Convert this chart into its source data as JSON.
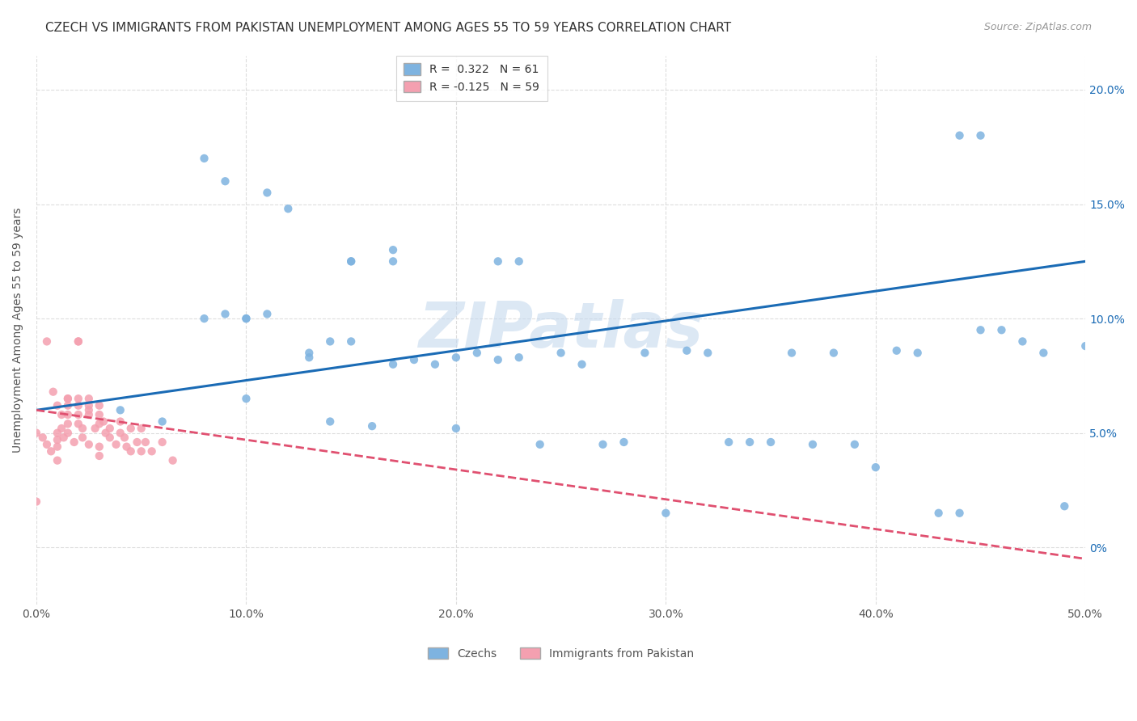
{
  "title": "CZECH VS IMMIGRANTS FROM PAKISTAN UNEMPLOYMENT AMONG AGES 55 TO 59 YEARS CORRELATION CHART",
  "source": "Source: ZipAtlas.com",
  "ylabel": "Unemployment Among Ages 55 to 59 years",
  "xlim": [
    0.0,
    0.5
  ],
  "ylim": [
    -0.025,
    0.215
  ],
  "xticks": [
    0.0,
    0.1,
    0.2,
    0.3,
    0.4,
    0.5
  ],
  "yticks": [
    0.0,
    0.05,
    0.1,
    0.15,
    0.2
  ],
  "ytick_labels_right": [
    "0%",
    "5.0%",
    "10.0%",
    "15.0%",
    "20.0%"
  ],
  "xtick_labels": [
    "0.0%",
    "10.0%",
    "20.0%",
    "30.0%",
    "40.0%",
    "50.0%"
  ],
  "czech_color": "#7eb3e0",
  "pakistan_color": "#f4a0b0",
  "czech_line_color": "#1a6bb5",
  "pakistan_line_color": "#e05070",
  "czech_R": 0.322,
  "czech_N": 61,
  "pakistan_R": -0.125,
  "pakistan_N": 59,
  "watermark": "ZIPatlas",
  "legend_labels": [
    "Czechs",
    "Immigrants from Pakistan"
  ],
  "background_color": "#ffffff",
  "grid_color": "#dddddd",
  "czech_scatter_x": [
    0.04,
    0.06,
    0.08,
    0.09,
    0.1,
    0.1,
    0.11,
    0.12,
    0.13,
    0.14,
    0.14,
    0.15,
    0.15,
    0.16,
    0.17,
    0.17,
    0.18,
    0.19,
    0.2,
    0.2,
    0.21,
    0.22,
    0.23,
    0.24,
    0.25,
    0.26,
    0.27,
    0.28,
    0.29,
    0.3,
    0.31,
    0.32,
    0.33,
    0.34,
    0.35,
    0.36,
    0.37,
    0.38,
    0.39,
    0.4,
    0.41,
    0.42,
    0.43,
    0.44,
    0.45,
    0.46,
    0.47,
    0.48,
    0.49,
    0.5,
    0.08,
    0.09,
    0.1,
    0.11,
    0.13,
    0.15,
    0.17,
    0.22,
    0.23,
    0.44,
    0.45
  ],
  "czech_scatter_y": [
    0.06,
    0.055,
    0.1,
    0.102,
    0.065,
    0.1,
    0.155,
    0.148,
    0.083,
    0.09,
    0.055,
    0.09,
    0.125,
    0.053,
    0.08,
    0.125,
    0.082,
    0.08,
    0.052,
    0.083,
    0.085,
    0.082,
    0.125,
    0.045,
    0.085,
    0.08,
    0.045,
    0.046,
    0.085,
    0.015,
    0.086,
    0.085,
    0.046,
    0.046,
    0.046,
    0.085,
    0.045,
    0.085,
    0.045,
    0.035,
    0.086,
    0.085,
    0.015,
    0.015,
    0.095,
    0.095,
    0.09,
    0.085,
    0.018,
    0.088,
    0.17,
    0.16,
    0.1,
    0.102,
    0.085,
    0.125,
    0.13,
    0.125,
    0.083,
    0.18,
    0.18
  ],
  "pakistan_scatter_x": [
    0.0,
    0.003,
    0.005,
    0.007,
    0.01,
    0.01,
    0.01,
    0.01,
    0.012,
    0.013,
    0.015,
    0.015,
    0.015,
    0.015,
    0.015,
    0.018,
    0.02,
    0.02,
    0.02,
    0.02,
    0.02,
    0.022,
    0.022,
    0.025,
    0.025,
    0.025,
    0.025,
    0.028,
    0.03,
    0.03,
    0.03,
    0.03,
    0.032,
    0.033,
    0.035,
    0.035,
    0.038,
    0.04,
    0.04,
    0.042,
    0.043,
    0.045,
    0.045,
    0.048,
    0.05,
    0.05,
    0.052,
    0.055,
    0.06,
    0.065,
    0.0,
    0.005,
    0.008,
    0.01,
    0.012,
    0.015,
    0.02,
    0.025,
    0.03
  ],
  "pakistan_scatter_y": [
    0.05,
    0.048,
    0.045,
    0.042,
    0.05,
    0.047,
    0.044,
    0.038,
    0.052,
    0.048,
    0.065,
    0.062,
    0.058,
    0.054,
    0.05,
    0.046,
    0.065,
    0.062,
    0.058,
    0.054,
    0.09,
    0.052,
    0.048,
    0.065,
    0.062,
    0.058,
    0.045,
    0.052,
    0.062,
    0.058,
    0.054,
    0.044,
    0.055,
    0.05,
    0.052,
    0.048,
    0.045,
    0.055,
    0.05,
    0.048,
    0.044,
    0.052,
    0.042,
    0.046,
    0.052,
    0.042,
    0.046,
    0.042,
    0.046,
    0.038,
    0.02,
    0.09,
    0.068,
    0.062,
    0.058,
    0.065,
    0.09,
    0.06,
    0.04
  ],
  "czech_line_x": [
    0.0,
    0.5
  ],
  "czech_line_y": [
    0.06,
    0.125
  ],
  "pakistan_line_x": [
    0.0,
    0.5
  ],
  "pakistan_line_y": [
    0.06,
    -0.005
  ],
  "title_fontsize": 11,
  "source_fontsize": 9,
  "axis_label_fontsize": 10,
  "tick_fontsize": 10,
  "legend_fontsize": 10,
  "watermark_fontsize": 56,
  "watermark_color": "#c5d9ee",
  "watermark_alpha": 0.6
}
